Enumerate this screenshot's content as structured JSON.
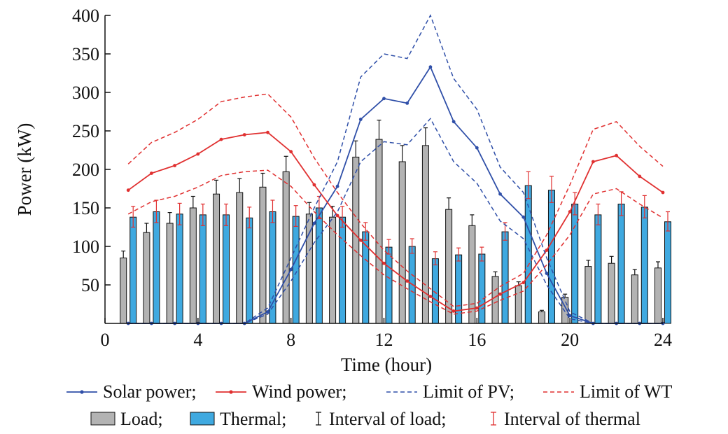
{
  "chart_data": {
    "type": "bar",
    "xlabel": "Time (hour)",
    "ylabel": "Power (kW)",
    "xlim": [
      0,
      24
    ],
    "ylim": [
      0,
      400
    ],
    "xticks": [
      0,
      4,
      8,
      12,
      16,
      20,
      24
    ],
    "yticks": [
      50,
      100,
      150,
      200,
      250,
      300,
      350,
      400
    ],
    "hours": [
      1,
      2,
      3,
      4,
      5,
      6,
      7,
      8,
      9,
      10,
      11,
      12,
      13,
      14,
      15,
      16,
      17,
      18,
      19,
      20,
      21,
      22,
      23,
      24
    ],
    "bars": [
      {
        "name": "Load",
        "color": "#b3b3b3",
        "values": [
          85,
          118,
          130,
          150,
          168,
          170,
          177,
          197,
          142,
          138,
          216,
          239,
          210,
          231,
          148,
          127,
          61,
          49,
          15,
          34,
          74,
          78,
          63,
          72
        ],
        "interval_upper": [
          94,
          130,
          144,
          165,
          186,
          188,
          195,
          217,
          157,
          152,
          237,
          264,
          231,
          254,
          163,
          141,
          67,
          54,
          17,
          38,
          82,
          87,
          70,
          80
        ],
        "interval_color": "#111111"
      },
      {
        "name": "Thermal",
        "color": "#3fa9e0",
        "values": [
          138,
          145,
          142,
          141,
          141,
          137,
          145,
          139,
          150,
          138,
          119,
          99,
          100,
          84,
          89,
          90,
          119,
          179,
          173,
          155,
          141,
          155,
          151,
          132
        ],
        "interval_upper": [
          152,
          160,
          156,
          155,
          155,
          151,
          160,
          153,
          165,
          152,
          131,
          109,
          110,
          93,
          98,
          99,
          131,
          197,
          191,
          170,
          155,
          171,
          166,
          145
        ],
        "interval_lower": [
          125,
          131,
          128,
          127,
          127,
          124,
          131,
          126,
          136,
          125,
          108,
          90,
          91,
          76,
          81,
          81,
          108,
          162,
          157,
          141,
          128,
          140,
          137,
          120
        ],
        "interval_color": "#e03030"
      }
    ],
    "lines": [
      {
        "name": "Solar power",
        "color": "#2f4fa8",
        "style": "solid-marker",
        "x": [
          1,
          2,
          3,
          4,
          5,
          6,
          7,
          8,
          9,
          10,
          11,
          12,
          13,
          14,
          15,
          16,
          17,
          18,
          19,
          20,
          21,
          22,
          23,
          24
        ],
        "y": [
          0,
          0,
          0,
          0,
          0,
          0,
          15,
          70,
          130,
          178,
          265,
          292,
          286,
          333,
          262,
          228,
          168,
          138,
          65,
          10,
          0,
          0,
          0,
          0
        ]
      },
      {
        "name": "Wind power",
        "color": "#e03030",
        "style": "solid-marker",
        "x": [
          1,
          2,
          3,
          4,
          5,
          6,
          7,
          8,
          9,
          10,
          11,
          12,
          13,
          14,
          15,
          16,
          17,
          18,
          19,
          20,
          21,
          22,
          23,
          24
        ],
        "y": [
          173,
          195,
          205,
          220,
          239,
          245,
          248,
          223,
          180,
          140,
          108,
          78,
          55,
          35,
          16,
          20,
          38,
          53,
          95,
          145,
          210,
          218,
          191,
          170
        ]
      },
      {
        "name": "Limit of PV",
        "color": "#2f4fa8",
        "style": "dashed",
        "x": [
          1,
          2,
          3,
          4,
          5,
          6,
          7,
          8,
          9,
          10,
          11,
          12,
          13,
          14,
          15,
          16,
          17,
          18,
          19,
          20,
          21,
          22,
          23,
          24
        ],
        "upper": [
          0,
          0,
          0,
          0,
          0,
          0,
          20,
          85,
          150,
          210,
          320,
          350,
          344,
          400,
          318,
          278,
          203,
          170,
          85,
          15,
          0,
          0,
          0,
          0
        ],
        "lower": [
          0,
          0,
          0,
          0,
          0,
          0,
          12,
          55,
          105,
          145,
          210,
          236,
          232,
          266,
          210,
          182,
          133,
          110,
          50,
          6,
          0,
          0,
          0,
          0
        ]
      },
      {
        "name": "Limit of WT",
        "color": "#e03030",
        "style": "dashed",
        "x": [
          1,
          2,
          3,
          4,
          5,
          6,
          7,
          8,
          9,
          10,
          11,
          12,
          13,
          14,
          15,
          16,
          17,
          18,
          19,
          20,
          21,
          22,
          23,
          24
        ],
        "upper": [
          207,
          235,
          248,
          265,
          288,
          294,
          298,
          268,
          215,
          170,
          130,
          95,
          68,
          45,
          22,
          26,
          48,
          65,
          115,
          180,
          252,
          262,
          230,
          204
        ],
        "lower": [
          142,
          158,
          165,
          177,
          192,
          197,
          199,
          178,
          145,
          115,
          88,
          63,
          45,
          28,
          12,
          16,
          30,
          42,
          76,
          115,
          168,
          175,
          155,
          137
        ]
      }
    ],
    "legend": {
      "position": "bottom",
      "row1": [
        "Solar power;",
        "Wind power;",
        "Limit of PV;",
        "Limit of WT"
      ],
      "row2": [
        "Load;",
        "Thermal;",
        "Interval of load;",
        "Interval of thermal"
      ]
    }
  }
}
